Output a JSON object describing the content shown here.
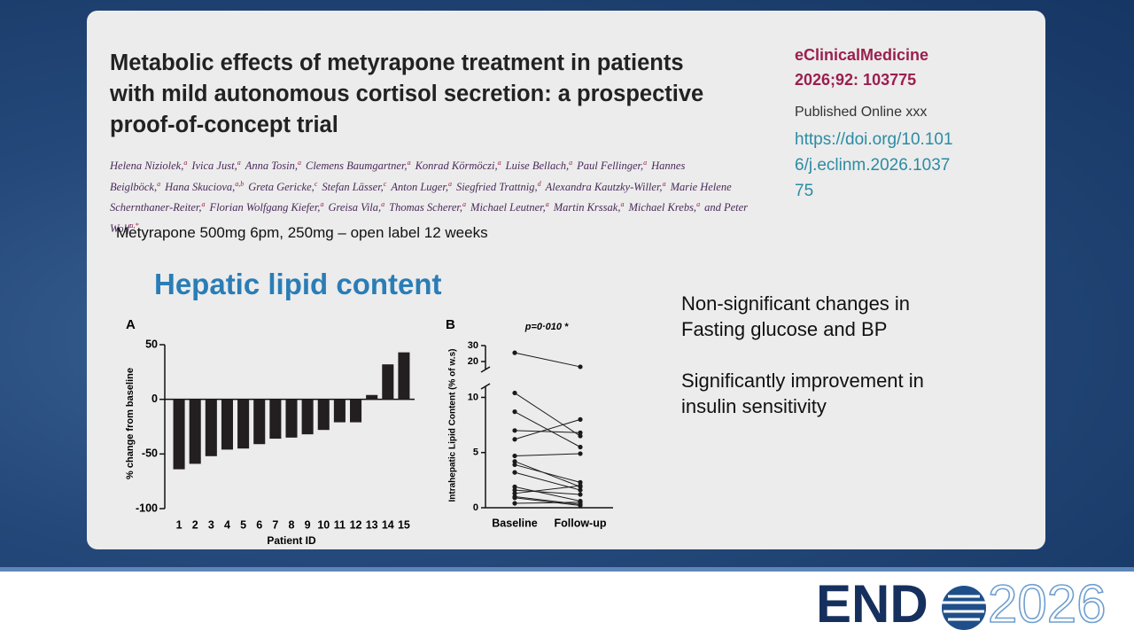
{
  "slide": {
    "title": "Metabolic effects of metyrapone treatment in patients with mild autonomous cortisol secretion: a prospective proof-of-concept trial",
    "journal": "eClinicalMedicine",
    "citation": "2026;92: 103775",
    "published": "Published Online xxx",
    "doi": "https://doi.org/10.1016/j.eclinm.2026.103775",
    "authors": [
      {
        "name": "Helena Niziolek,",
        "aff": "a"
      },
      {
        "name": "Ivica Just,",
        "aff": "a"
      },
      {
        "name": "Anna Tosin,",
        "aff": "a"
      },
      {
        "name": "Clemens Baumgartner,",
        "aff": "a"
      },
      {
        "name": "Konrad Körmöczi,",
        "aff": "a"
      },
      {
        "name": "Luise Bellach,",
        "aff": "a"
      },
      {
        "name": "Paul Fellinger,",
        "aff": "a"
      },
      {
        "name": "Hannes Beiglböck,",
        "aff": "a"
      },
      {
        "name": "Hana Skuciova,",
        "aff": "a,b"
      },
      {
        "name": "Greta Gericke,",
        "aff": "c"
      },
      {
        "name": "Stefan Lässer,",
        "aff": "c"
      },
      {
        "name": "Anton Luger,",
        "aff": "a"
      },
      {
        "name": "Siegfried Trattnig,",
        "aff": "d"
      },
      {
        "name": "Alexandra Kautzky-Willer,",
        "aff": "a"
      },
      {
        "name": "Marie Helene Schernthaner-Reiter,",
        "aff": "a"
      },
      {
        "name": "Florian Wolfgang Kiefer,",
        "aff": "a"
      },
      {
        "name": "Greisa Vila,",
        "aff": "a"
      },
      {
        "name": "Thomas Scherer,",
        "aff": "a"
      },
      {
        "name": "Michael Leutner,",
        "aff": "a"
      },
      {
        "name": "Martin Krssak,",
        "aff": "a"
      },
      {
        "name": "Michael Krebs,",
        "aff": "a"
      },
      {
        "name": "and Peter Wolf",
        "aff": "a,*"
      }
    ],
    "treatment": "Metyrapone 500mg 6pm, 250mg – open label 12 weeks",
    "section_title": "Hepatic lipid content",
    "notes": [
      "Non-significant changes in Fasting glucose and BP",
      "Significantly improvement in insulin sensitivity"
    ],
    "logo": [
      "END",
      "2026"
    ]
  },
  "chart_data": [
    {
      "type": "bar",
      "panel": "A",
      "x_label": "Patient ID",
      "y_label": "% change from baseline",
      "categories": [
        "1",
        "2",
        "3",
        "4",
        "5",
        "6",
        "7",
        "8",
        "9",
        "10",
        "11",
        "12",
        "13",
        "14",
        "15"
      ],
      "values": [
        -64,
        -59,
        -52,
        -46,
        -45,
        -41,
        -36,
        -35,
        -32,
        -28,
        -21,
        -21,
        4,
        32,
        43
      ],
      "color": "#231f20",
      "ylim": [
        -100,
        50
      ],
      "yticks": [
        -100,
        -50,
        0,
        50
      ],
      "grid": false
    },
    {
      "type": "line",
      "panel": "B",
      "y_label": "Intrahepatic Lipid Content (% of w.s)",
      "annotation": "p=0·010 *",
      "categories": [
        "Baseline",
        "Follow-up"
      ],
      "color": "#1a1a1a",
      "ylim": [
        0,
        30
      ],
      "yticks": [
        0,
        5,
        10,
        20,
        30
      ],
      "axis_break": [
        11,
        15
      ],
      "grid": false,
      "series": [
        {
          "values": [
            25.5,
            16.7
          ]
        },
        {
          "values": [
            10.4,
            6.5
          ]
        },
        {
          "values": [
            8.7,
            5.5
          ]
        },
        {
          "values": [
            7.0,
            6.8
          ]
        },
        {
          "values": [
            6.2,
            8.0
          ]
        },
        {
          "values": [
            4.7,
            4.9
          ]
        },
        {
          "values": [
            4.2,
            1.9
          ]
        },
        {
          "values": [
            3.9,
            2.3
          ]
        },
        {
          "values": [
            3.2,
            1.6
          ]
        },
        {
          "values": [
            1.9,
            0.6
          ]
        },
        {
          "values": [
            1.6,
            1.2
          ]
        },
        {
          "values": [
            1.3,
            2.0
          ]
        },
        {
          "values": [
            1.0,
            0.3
          ]
        },
        {
          "values": [
            0.9,
            0.2
          ]
        },
        {
          "values": [
            0.4,
            0.5
          ]
        }
      ]
    }
  ]
}
